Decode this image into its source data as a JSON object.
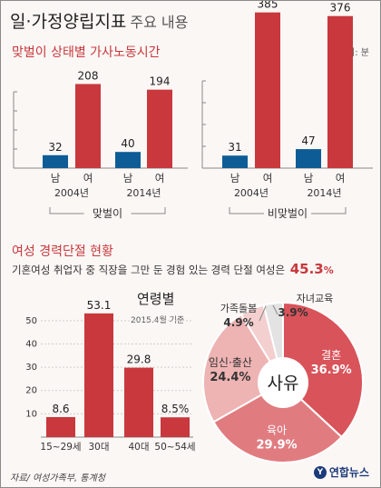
{
  "header": {
    "title": "일·가정양립지표",
    "subtitle": "주요 내용"
  },
  "section1": {
    "title": "맞벌이 상태별 가사노동시간",
    "unit": "단위: 분"
  },
  "section2": {
    "title": "여성 경력단절 현황",
    "note": "기혼여성 취업자 중 직장을 그만 둔 경험 있는 경력 단절 여성은",
    "value": "45.3",
    "value_unit": "%"
  },
  "footer": {
    "source": "자료/ 여성가족부, 통계청",
    "logo": "연합뉴스"
  },
  "colors": {
    "male": "#0d5c96",
    "female": "#c8383c",
    "age_bar": "#c8383c"
  },
  "chart_data": [
    {
      "type": "bar",
      "group_label": "맞벌이",
      "categories": [
        "남",
        "여",
        "남",
        "여"
      ],
      "years": [
        "2004년",
        "2014년"
      ],
      "values": [
        32,
        208,
        40,
        194
      ],
      "ylim": [
        0,
        400
      ]
    },
    {
      "type": "bar",
      "group_label": "비맞벌이",
      "categories": [
        "남",
        "여",
        "남",
        "여"
      ],
      "years": [
        "2004년",
        "2014년"
      ],
      "values": [
        31,
        385,
        47,
        376
      ],
      "ylim": [
        0,
        400
      ]
    },
    {
      "type": "bar",
      "title": "연령별",
      "subtitle": "2015.4월 기준",
      "categories": [
        "15~29세",
        "30대",
        "40대",
        "50~54세"
      ],
      "values": [
        8.6,
        53.1,
        29.8,
        8.5
      ],
      "value_labels": [
        "8.6",
        "53.1",
        "29.8",
        "8.5%"
      ],
      "yticks": [
        "10",
        "20",
        "30",
        "40",
        "50"
      ],
      "ylim": [
        0,
        55
      ]
    },
    {
      "type": "pie",
      "center_label": "사유",
      "slices": [
        {
          "label": "결혼",
          "value": 36.9,
          "value_text": "36.9%",
          "color": "#d9535a"
        },
        {
          "label": "육아",
          "value": 29.9,
          "value_text": "29.9%",
          "color": "#e07c80"
        },
        {
          "label": "임신·출산",
          "value": 24.4,
          "value_text": "24.4%",
          "color": "#eeb3b3"
        },
        {
          "label": "가족돌봄",
          "value": 4.9,
          "value_text": "4.9%",
          "color": "#f3cfcf"
        },
        {
          "label": "자녀교육",
          "value": 3.9,
          "value_text": "3.9%",
          "color": "#e3e3e3"
        }
      ]
    }
  ]
}
